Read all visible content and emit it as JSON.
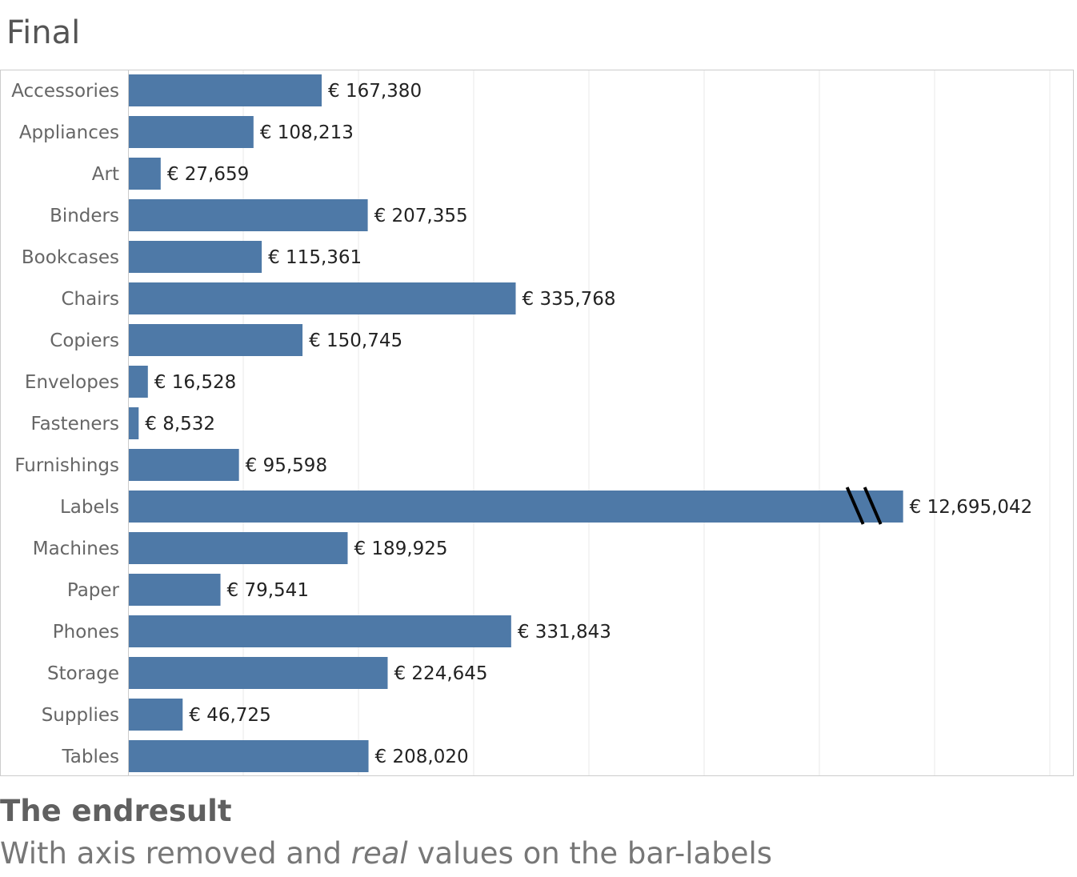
{
  "title": "Final",
  "caption": {
    "heading": "The endresult",
    "subtitle_before": "With axis removed and ",
    "subtitle_emphasis": "real",
    "subtitle_after": " values on the bar-labels"
  },
  "colors": {
    "bar": "#4e79a7",
    "grid": "#e8e8e8",
    "border": "#cccccc",
    "break_mark": "#000000"
  },
  "chart_data": {
    "type": "bar",
    "orientation": "horizontal",
    "title": "Final",
    "categories": [
      "Accessories",
      "Appliances",
      "Art",
      "Binders",
      "Bookcases",
      "Chairs",
      "Copiers",
      "Envelopes",
      "Fasteners",
      "Furnishings",
      "Labels",
      "Machines",
      "Paper",
      "Phones",
      "Storage",
      "Supplies",
      "Tables"
    ],
    "values": [
      167380,
      108213,
      27659,
      207355,
      115361,
      335768,
      150745,
      16528,
      8532,
      95598,
      12695042,
      189925,
      79541,
      331843,
      224645,
      46725,
      208020
    ],
    "value_labels": [
      "€ 167,380",
      "€ 108,213",
      "€ 27,659",
      "€ 207,355",
      "€ 115,361",
      "€ 335,768",
      "€ 150,745",
      "€ 16,528",
      "€ 8,532",
      "€ 95,598",
      "€ 12,695,042",
      "€ 189,925",
      "€ 79,541",
      "€ 331,843",
      "€ 224,645",
      "€ 46,725",
      "€ 208,020"
    ],
    "axis_visible": false,
    "xlim": [
      0,
      820000
    ],
    "grid": true,
    "grid_step": 100000,
    "broken_bar": {
      "category": "Labels",
      "displayed_value": 672000
    },
    "xlabel": "",
    "ylabel": ""
  }
}
